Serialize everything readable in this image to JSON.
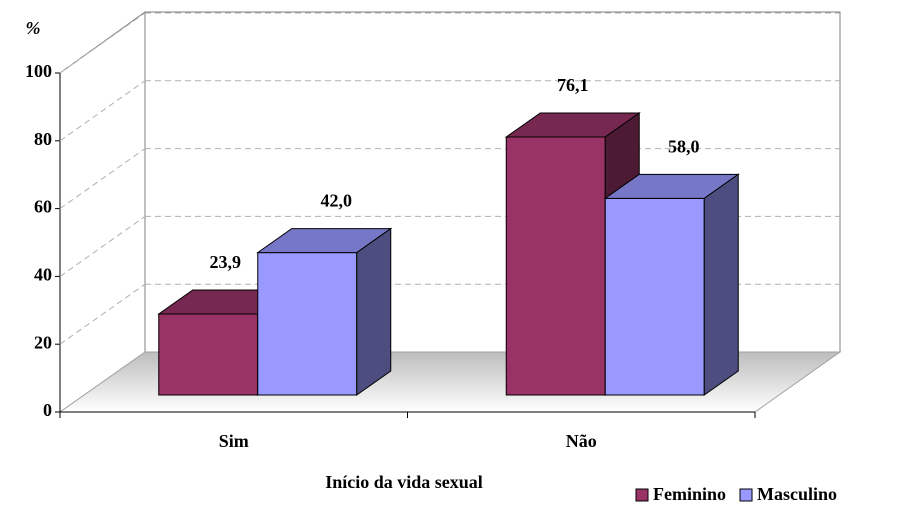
{
  "chart_data": {
    "type": "bar3d",
    "x_label": "Início da vida sexual",
    "y_label": "%",
    "categories": [
      "Sim",
      "Não"
    ],
    "series": [
      {
        "name": "Feminino",
        "color": "#993366",
        "values": [
          23.9,
          76.1
        ],
        "value_labels": [
          "23,9",
          "76,1"
        ]
      },
      {
        "name": "Masculino",
        "color": "#9999ff",
        "values": [
          42.0,
          58.0
        ],
        "value_labels": [
          "42,0",
          "58,0"
        ]
      }
    ],
    "ylim": [
      0,
      100
    ],
    "yticks": [
      0,
      20,
      40,
      60,
      80,
      100
    ],
    "grid": true,
    "legend": "bottom-right"
  }
}
